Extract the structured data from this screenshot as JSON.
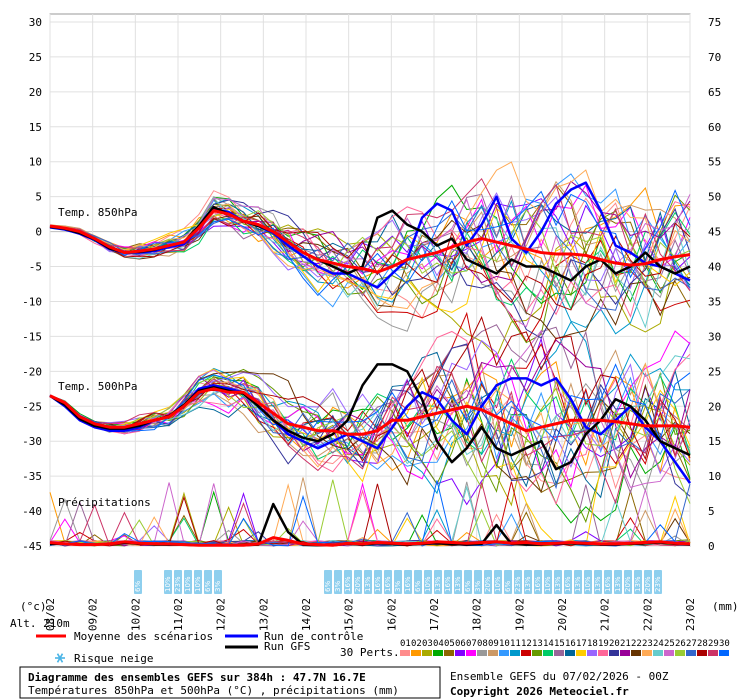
{
  "chart_data": {
    "type": "line",
    "x_dates": [
      "08/02",
      "09/02",
      "10/02",
      "11/02",
      "12/02",
      "13/02",
      "14/02",
      "15/02",
      "16/02",
      "17/02",
      "18/02",
      "19/02",
      "20/02",
      "21/02",
      "22/02",
      "23/02"
    ],
    "left_axis": {
      "unit": "(°c)",
      "range": [
        -45,
        30
      ],
      "ticks": [
        30,
        25,
        20,
        15,
        10,
        5,
        0,
        -5,
        -10,
        -15,
        -20,
        -25,
        -30,
        -35,
        -40,
        -45
      ]
    },
    "right_axis": {
      "unit": "(mm)",
      "range": [
        0,
        75
      ],
      "ticks": [
        75,
        70,
        65,
        60,
        55,
        50,
        45,
        40,
        35,
        30,
        25,
        20,
        15,
        10,
        5,
        0
      ]
    },
    "panel_labels": {
      "t850": "Temp. 850hPa",
      "t500": "Temp. 500hPa",
      "precip": "Précipitations"
    },
    "altitude": "Alt. 210m",
    "series": [
      {
        "name": "Moyenne des scénarios",
        "color": "#ff0000",
        "t850": [
          0.8,
          0.5,
          0,
          -1,
          -2.2,
          -3,
          -2.8,
          -2.5,
          -2,
          -1.5,
          0.5,
          3,
          2.5,
          1.5,
          1,
          0,
          -1.5,
          -3,
          -4,
          -4.5,
          -5,
          -5.3,
          -5.8,
          -5,
          -4,
          -3.5,
          -3,
          -2.2,
          -1.5,
          -1,
          -1.5,
          -2,
          -2.5,
          -3,
          -3.2,
          -3.2,
          -3.4,
          -4,
          -4.5,
          -4.8,
          -4.6,
          -4,
          -3.6,
          -3.3
        ],
        "t500": [
          -23.5,
          -24.5,
          -26.5,
          -27.5,
          -28,
          -28,
          -27.5,
          -27,
          -26.5,
          -25,
          -23,
          -22.5,
          -23,
          -23,
          -24.5,
          -26,
          -27.5,
          -28,
          -28.5,
          -28.5,
          -29,
          -29,
          -28.5,
          -27,
          -27,
          -26.5,
          -26,
          -25.5,
          -25,
          -25.5,
          -26.5,
          -27.5,
          -28.5,
          -28,
          -27.5,
          -27,
          -27,
          -27,
          -27.2,
          -27.5,
          -27.8,
          -27.8,
          -27.8,
          -28
        ],
        "precip": [
          0.5,
          0.3,
          0.2,
          0.2,
          0.3,
          0.6,
          0.4,
          0.3,
          0.3,
          0.2,
          0.1,
          0.1,
          0.1,
          0.1,
          0.3,
          1.2,
          0.8,
          0.3,
          0.2,
          0.1,
          0.4,
          0.3,
          0.5,
          0.4,
          0.3,
          0.4,
          0.6,
          0.5,
          0.4,
          0.5,
          0.6,
          0.4,
          0.5,
          0.3,
          0.4,
          0.5,
          0.4,
          0.3,
          0.3,
          0.4,
          0.5,
          0.6,
          0.4,
          0.3
        ]
      },
      {
        "name": "Run de contrôle",
        "color": "#0000ff",
        "t850": [
          0.6,
          0.3,
          -0.3,
          -1.2,
          -2.5,
          -3,
          -3,
          -2.8,
          -2.2,
          -1.8,
          0.5,
          3.2,
          2.8,
          1.5,
          0.8,
          -0.2,
          -2,
          -3.5,
          -5,
          -6,
          -6,
          -7,
          -8,
          -6,
          -4,
          2,
          4,
          3,
          -2,
          1,
          5,
          -1,
          -3,
          0,
          4,
          6,
          7,
          3,
          -2,
          -3,
          -4.5,
          -5,
          -6,
          -7
        ],
        "t500": [
          -23.5,
          -25,
          -27,
          -28,
          -28.5,
          -28.5,
          -28,
          -27,
          -26.5,
          -25,
          -22.5,
          -22,
          -22.5,
          -23,
          -25,
          -27,
          -29,
          -30,
          -31,
          -30,
          -29,
          -30,
          -31,
          -28,
          -25,
          -23,
          -24,
          -27,
          -29,
          -25,
          -22,
          -21,
          -21,
          -22,
          -21,
          -24,
          -28,
          -29,
          -27,
          -25,
          -28,
          -30,
          -33,
          -36
        ]
      },
      {
        "name": "Run GFS",
        "color": "#000000",
        "t850": [
          0.7,
          0.4,
          -0.2,
          -1.1,
          -2.4,
          -3,
          -2.9,
          -2.6,
          -2,
          -1.5,
          0.8,
          3.5,
          2.5,
          1.5,
          0.8,
          0,
          -1.5,
          -3,
          -4,
          -5,
          -6,
          -5,
          2,
          3,
          1,
          0,
          -2,
          -1,
          -4,
          -5,
          -6,
          -4,
          -5,
          -5,
          -6,
          -7,
          -5,
          -4,
          -6,
          -5,
          -3,
          -5,
          -6,
          -5
        ],
        "t500": [
          -23.5,
          -24.8,
          -26.8,
          -27.8,
          -28.2,
          -28.2,
          -27.8,
          -27,
          -26.4,
          -24.8,
          -22.8,
          -22.3,
          -22.8,
          -23.2,
          -25,
          -27,
          -28.5,
          -29.5,
          -30,
          -29,
          -27,
          -22,
          -19,
          -19,
          -20,
          -24,
          -30,
          -33,
          -31,
          -28,
          -31,
          -32,
          -31,
          -30,
          -34,
          -33,
          -29,
          -27,
          -24,
          -25,
          -27,
          -30,
          -31,
          -32
        ],
        "precip": [
          0.3,
          0.3,
          0.2,
          0.2,
          0.3,
          0.5,
          0.3,
          0.2,
          0.2,
          0.2,
          0.1,
          0.1,
          0.1,
          0.1,
          0.2,
          6,
          2,
          0.2,
          0.1,
          0.1,
          0.3,
          0.2,
          0.4,
          0.3,
          0.2,
          0.3,
          0.4,
          0.3,
          0.2,
          0.3,
          3,
          0.3,
          0.2,
          0.2,
          0.3,
          0.4,
          0.3,
          0.2,
          0.2,
          0.3,
          0.4,
          0.5,
          0.3,
          0.2
        ]
      }
    ],
    "snow_risk": {
      "group1": [
        "6%",
        "10%",
        "23%",
        "10%",
        "10%",
        "6%",
        "3%"
      ],
      "group2": [
        "6%",
        "3%",
        "16%",
        "20%",
        "13%",
        "16%",
        "16%",
        "3%",
        "16%",
        "6%",
        "10%",
        "13%",
        "16%",
        "13%",
        "6%",
        "3%",
        "20%",
        "10%",
        "6%",
        "23%",
        "13%",
        "16%",
        "10%",
        "13%",
        "16%",
        "13%",
        "10%",
        "13%",
        "16%",
        "13%",
        "20%",
        "13%",
        "20%",
        "23%"
      ]
    }
  },
  "legend": {
    "mean": "Moyenne des scénarios",
    "control": "Run de contrôle",
    "gfs": "Run GFS",
    "snow": "Risque neige",
    "perts_label": "30 Perts.",
    "perts_numbers": [
      "01",
      "02",
      "03",
      "04",
      "05",
      "06",
      "07",
      "08",
      "09",
      "10",
      "11",
      "12",
      "13",
      "14",
      "15",
      "16",
      "17",
      "18",
      "19",
      "20",
      "21",
      "22",
      "23",
      "24",
      "25",
      "26",
      "27",
      "28",
      "29",
      "30"
    ],
    "perts_colors": [
      "#ff8c8c",
      "#ff9900",
      "#aaaa00",
      "#00aa00",
      "#8c6600",
      "#8000ff",
      "#ff00ff",
      "#999999",
      "#cc9966",
      "#3399ff",
      "#0099cc",
      "#cc0000",
      "#669900",
      "#00cc66",
      "#996699",
      "#006699",
      "#ffcc00",
      "#9966ff",
      "#ff6699",
      "#333399",
      "#990099",
      "#663300",
      "#ffaa55",
      "#66cccc",
      "#cc66cc",
      "#99cc33",
      "#3366cc",
      "#aa0000",
      "#cc3366",
      "#0066ff"
    ]
  },
  "footer": {
    "title": "Diagramme des ensembles GEFS sur 384h : 47.7N 16.7E",
    "subtitle": "Températures 850hPa et 500hPa (°C) , précipitations (mm)",
    "ensemble": "Ensemble GEFS du 07/02/2026 - 00Z",
    "copyright": "Copyright 2026 Meteociel.fr"
  }
}
